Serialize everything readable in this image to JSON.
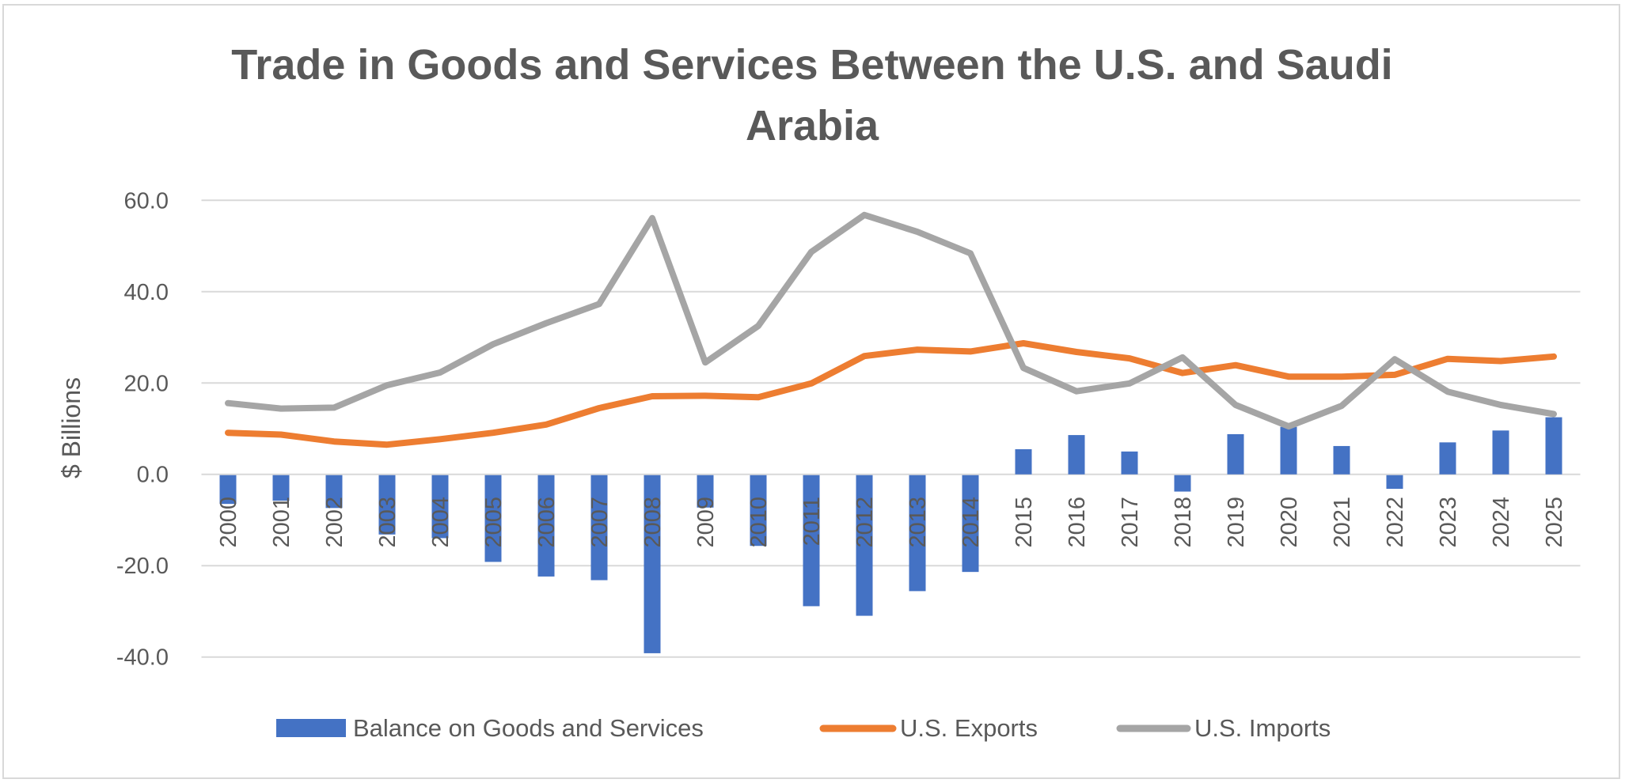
{
  "chart_data": {
    "type": "bar",
    "title": "Trade in Goods and Services Between the U.S. and Saudi Arabia",
    "title_lines": [
      "Trade in Goods and Services Between the U.S. and Saudi",
      "Arabia"
    ],
    "xlabel": "",
    "ylabel": "$ Billions",
    "ylim": [
      -40,
      60
    ],
    "yticks": [
      -40,
      -20,
      0,
      20,
      40,
      60
    ],
    "ytick_labels": [
      "-40.0",
      "-20.0",
      "0.0",
      "20.0",
      "40.0",
      "60.0"
    ],
    "grid": true,
    "legend_position": "bottom",
    "categories": [
      "2000",
      "2001",
      "2002",
      "2003",
      "2004",
      "2005",
      "2006",
      "2007",
      "2008",
      "2009",
      "2010",
      "2011",
      "2012",
      "2013",
      "2014",
      "2015",
      "2016",
      "2017",
      "2018",
      "2019",
      "2020",
      "2021",
      "2022",
      "2023",
      "2024",
      "2025"
    ],
    "series": [
      {
        "name": "Balance on Goods and Services",
        "type": "bar",
        "color": "#4472C4",
        "values": [
          -6.3,
          -5.6,
          -7.2,
          -13.0,
          -13.8,
          -19.0,
          -22.2,
          -23.0,
          -39.0,
          -7.1,
          -15.5,
          -28.7,
          -30.8,
          -25.4,
          -21.2,
          5.5,
          8.6,
          5.0,
          -3.6,
          8.8,
          10.4,
          6.2,
          -3.0,
          7.0,
          9.6,
          12.5
        ]
      },
      {
        "name": "U.S. Exports",
        "type": "line",
        "color": "#ED7D31",
        "values": [
          9.1,
          8.7,
          7.2,
          6.5,
          7.7,
          9.1,
          10.9,
          14.5,
          17.1,
          17.2,
          16.9,
          19.9,
          25.9,
          27.3,
          26.9,
          28.7,
          26.8,
          25.4,
          22.2,
          23.9,
          21.4,
          21.4,
          21.8,
          25.3,
          24.8,
          25.8
        ]
      },
      {
        "name": "U.S. Imports",
        "type": "line",
        "color": "#A5A5A5",
        "values": [
          15.6,
          14.4,
          14.6,
          19.5,
          22.3,
          28.5,
          33.1,
          37.3,
          56.1,
          24.5,
          32.5,
          48.7,
          56.8,
          53.1,
          48.4,
          23.3,
          18.2,
          19.9,
          25.6,
          15.2,
          10.5,
          15.0,
          25.2,
          18.1,
          15.2,
          13.2
        ]
      }
    ]
  }
}
